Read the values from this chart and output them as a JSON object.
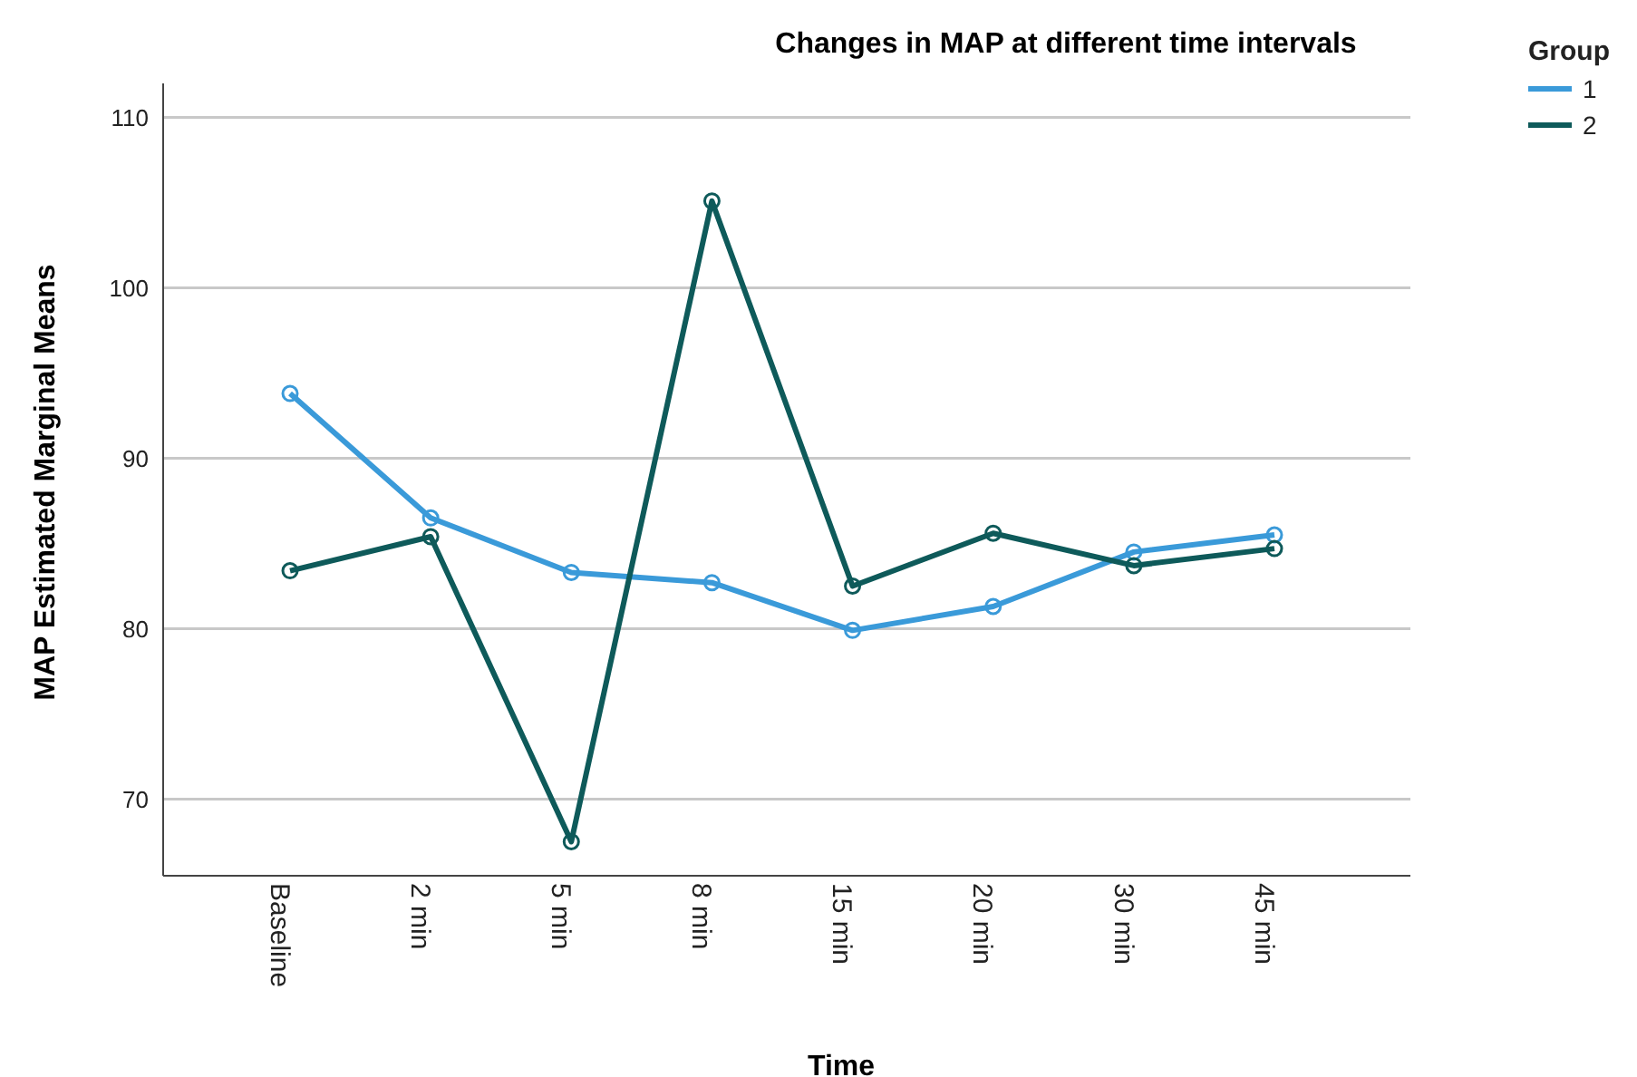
{
  "chart_data": {
    "type": "line",
    "title": "Changes in MAP at different time intervals",
    "xlabel": "Time",
    "ylabel": "MAP Estimated Marginal Means",
    "legend_title": "Group",
    "categories": [
      "Baseline",
      "2 min",
      "5 min",
      "8 min",
      "15 min",
      "20 min",
      "30 min",
      "45 min"
    ],
    "series": [
      {
        "name": "1",
        "color": "#3a9ad9",
        "values": [
          93.8,
          86.5,
          83.3,
          82.7,
          79.9,
          81.3,
          84.5,
          85.5
        ]
      },
      {
        "name": "2",
        "color": "#0e5a5a",
        "values": [
          83.4,
          85.4,
          67.5,
          105.1,
          82.5,
          85.6,
          83.7,
          84.7
        ]
      }
    ],
    "ylim": [
      65.5,
      112
    ],
    "yticks": [
      70,
      80,
      90,
      100,
      110
    ],
    "grid": "y",
    "legend": "top right",
    "marker": "circle",
    "line_style": "solid"
  }
}
